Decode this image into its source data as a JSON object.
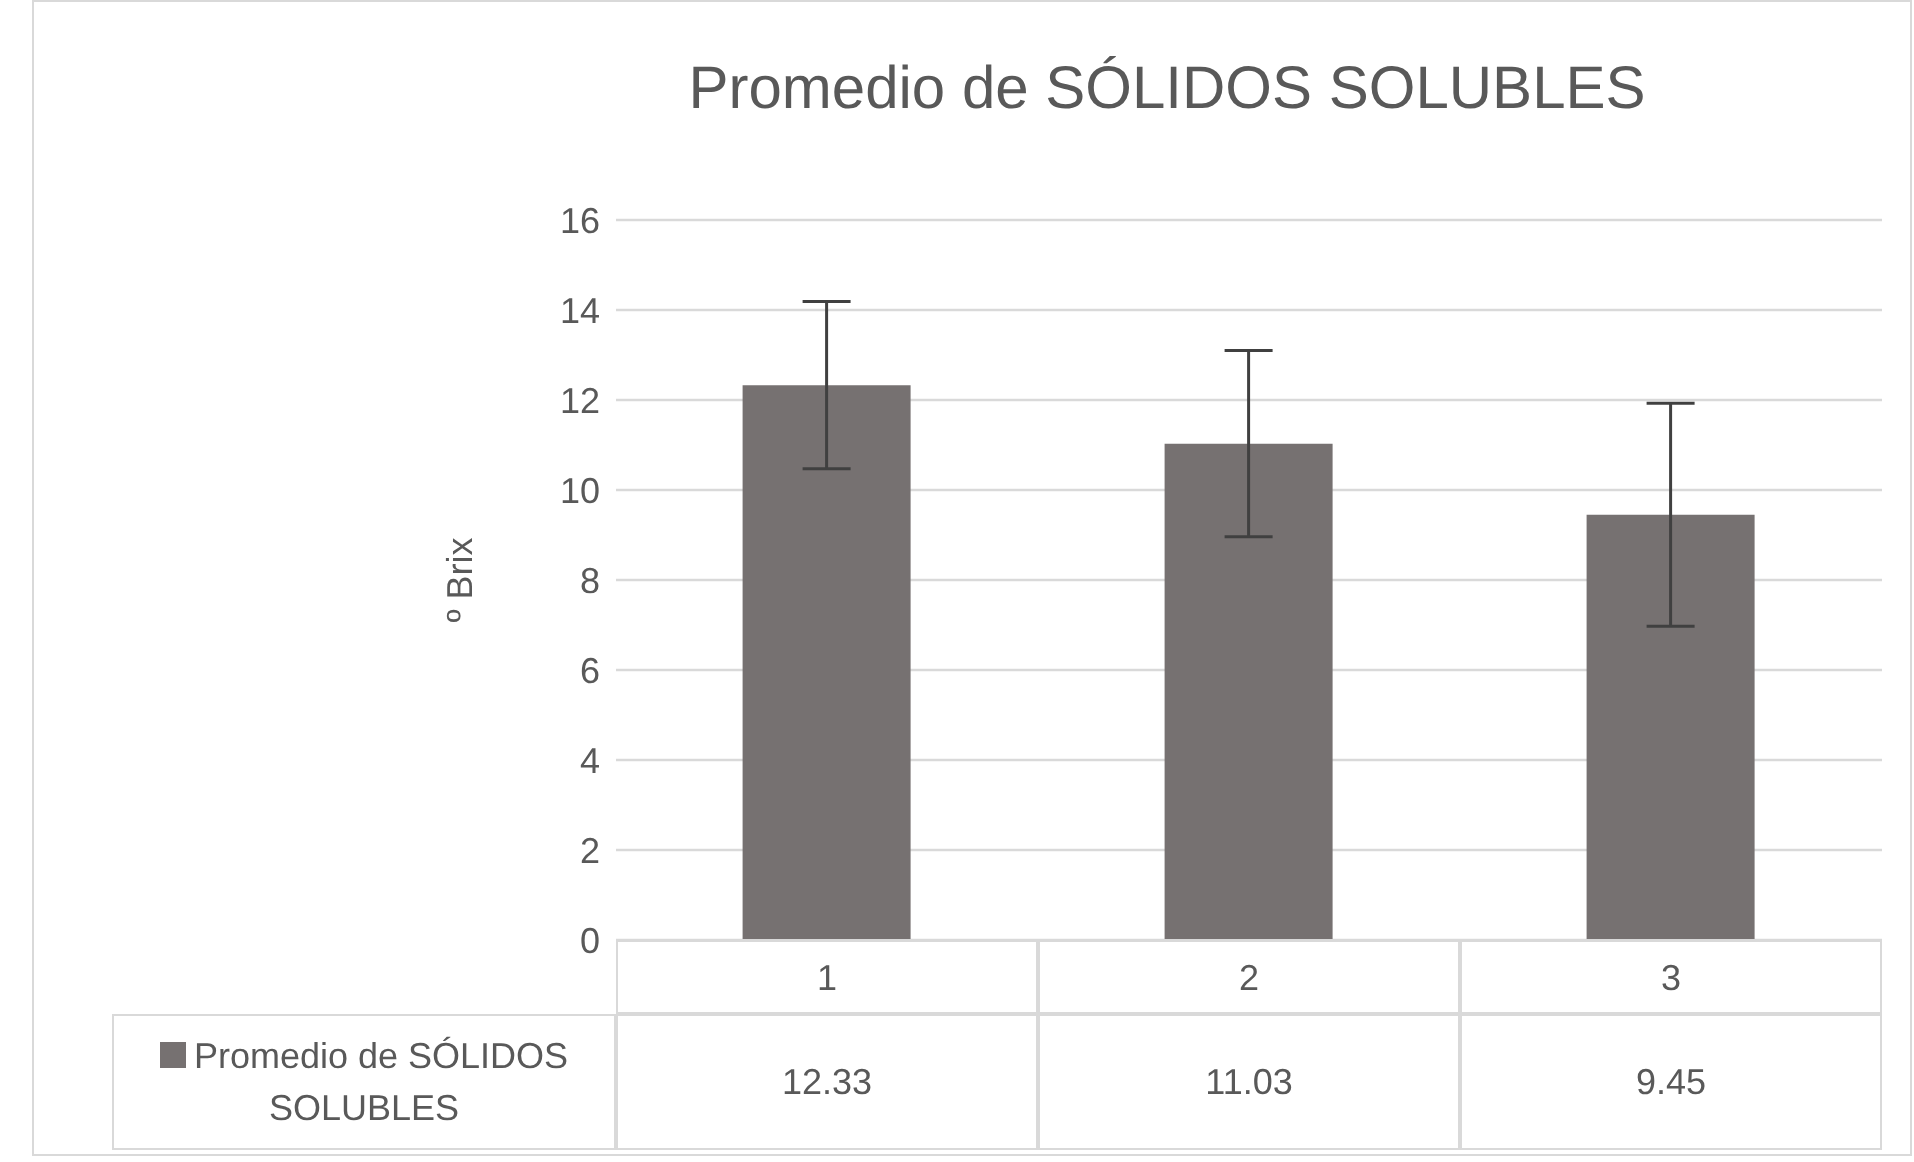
{
  "chart_data": {
    "type": "bar",
    "title": "Promedio de SÓLIDOS SOLUBLES",
    "ylabel": "º Brix",
    "categories": [
      "1",
      "2",
      "3"
    ],
    "series": [
      {
        "name": "Promedio de SÓLIDOS SOLUBLES",
        "color": "#767171",
        "values": [
          12.33,
          11.03,
          9.45
        ],
        "errors": [
          1.86,
          2.07,
          2.48
        ]
      }
    ],
    "ylim": [
      0,
      16
    ],
    "yticks": [
      0,
      2,
      4,
      6,
      8,
      10,
      12,
      14,
      16
    ],
    "grid": "y",
    "legend": "bottom",
    "data_labels": true
  }
}
